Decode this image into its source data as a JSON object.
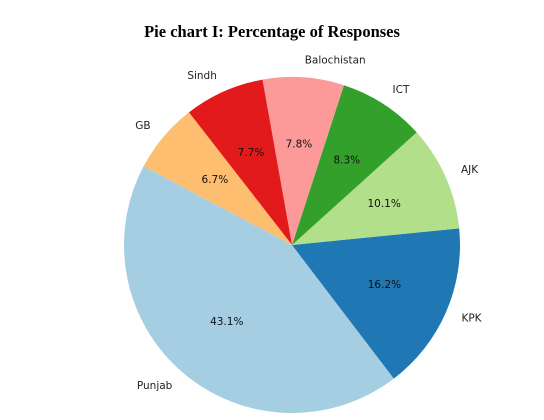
{
  "chart_data": {
    "type": "pie",
    "title": "Pie chart I: Percentage of Responses",
    "slices": [
      {
        "label": "Punjab",
        "value": 43.1,
        "pct_label": "43.1%",
        "color": "#a6cee3"
      },
      {
        "label": "KPK",
        "value": 16.2,
        "pct_label": "16.2%",
        "color": "#1f78b4"
      },
      {
        "label": "AJK",
        "value": 10.1,
        "pct_label": "10.1%",
        "color": "#b2df8a"
      },
      {
        "label": "ICT",
        "value": 8.3,
        "pct_label": "8.3%",
        "color": "#33a02c"
      },
      {
        "label": "Balochistan",
        "value": 7.8,
        "pct_label": "7.8%",
        "color": "#fb9a99"
      },
      {
        "label": "Sindh",
        "value": 7.7,
        "pct_label": "7.7%",
        "color": "#e31a1c"
      },
      {
        "label": "GB",
        "value": 6.7,
        "pct_label": "6.7%",
        "color": "#fdbf6f"
      }
    ],
    "legend": "none"
  }
}
